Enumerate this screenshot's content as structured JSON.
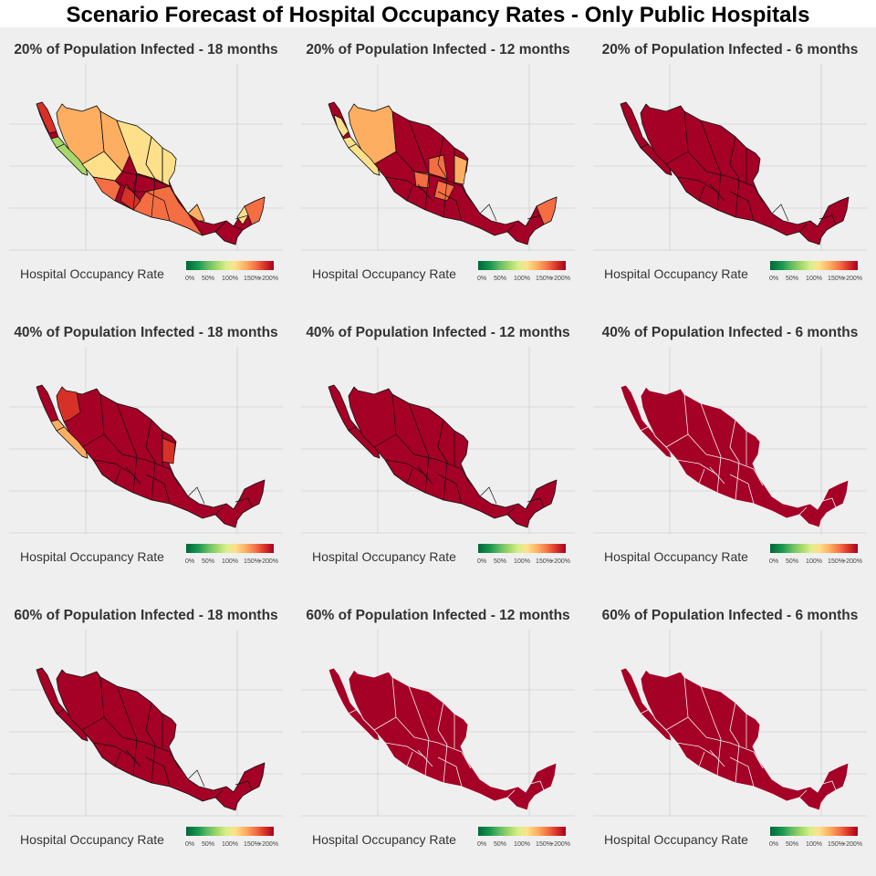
{
  "title": "Scenario Forecast of Hospital Occupancy Rates - Only Public Hospitals",
  "legend": {
    "title": "Hospital Occupancy Rate",
    "ticks": [
      "0%",
      "50%",
      "100%",
      "150%",
      "+200%"
    ]
  },
  "colors": {
    "dark_red": "#a50026",
    "red": "#d73027",
    "orange_red": "#f46d43",
    "orange": "#fdae61",
    "light_yellow": "#fee08b",
    "yellow_green": "#d9ef8b",
    "light_green": "#a6d96a",
    "green": "#1a9850",
    "dark_green": "#006837"
  },
  "panels": [
    {
      "title": "20% of Population Infected - 18 months",
      "scheme": "mixed18"
    },
    {
      "title": "20% of Population Infected - 12 months",
      "scheme": "mixed12"
    },
    {
      "title": "20% of Population Infected - 6 months",
      "scheme": "allred_dark"
    },
    {
      "title": "40% of Population Infected - 18 months",
      "scheme": "mostly_red"
    },
    {
      "title": "40% of Population Infected - 12 months",
      "scheme": "allred_dark"
    },
    {
      "title": "40% of Population Infected - 6 months",
      "scheme": "allred_white"
    },
    {
      "title": "60% of Population Infected - 18 months",
      "scheme": "allred_dark"
    },
    {
      "title": "60% of Population Infected - 12 months",
      "scheme": "allred_white"
    },
    {
      "title": "60% of Population Infected - 6 months",
      "scheme": "allred_white"
    }
  ]
}
